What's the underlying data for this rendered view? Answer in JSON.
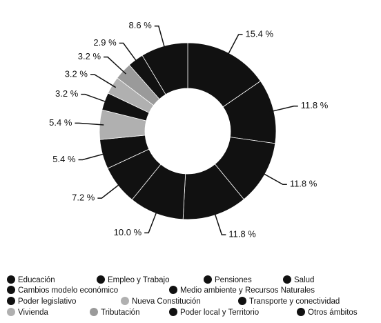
{
  "chart_data": {
    "type": "donut",
    "categories": [
      "Educación",
      "Empleo y Trabajo",
      "Pensiones",
      "Salud",
      "Cambios modelo económico",
      "Medio ambiente y Recursos Naturales",
      "Poder legislativo",
      "Nueva Constitución",
      "Transporte y conectividad",
      "Vivienda",
      "Tributación",
      "Poder local y Territorio",
      "Otros ámbitos"
    ],
    "values": [
      15.4,
      11.8,
      11.8,
      11.8,
      10.0,
      7.2,
      5.4,
      5.4,
      3.2,
      3.2,
      3.2,
      2.9,
      8.6
    ],
    "value_labels": [
      "15.4 %",
      "11.8 %",
      "11.8 %",
      "11.8 %",
      "10.0 %",
      "7.2 %",
      "5.4 %",
      "5.4 %",
      "3.2 %",
      "3.2 %",
      "3.2 %",
      "2.9 %",
      "8.6 %"
    ],
    "colors": [
      "#111111",
      "#111111",
      "#111111",
      "#111111",
      "#111111",
      "#111111",
      "#111111",
      "#b0b0b0",
      "#111111",
      "#b0b0b0",
      "#9a9a9a",
      "#111111",
      "#111111"
    ]
  }
}
